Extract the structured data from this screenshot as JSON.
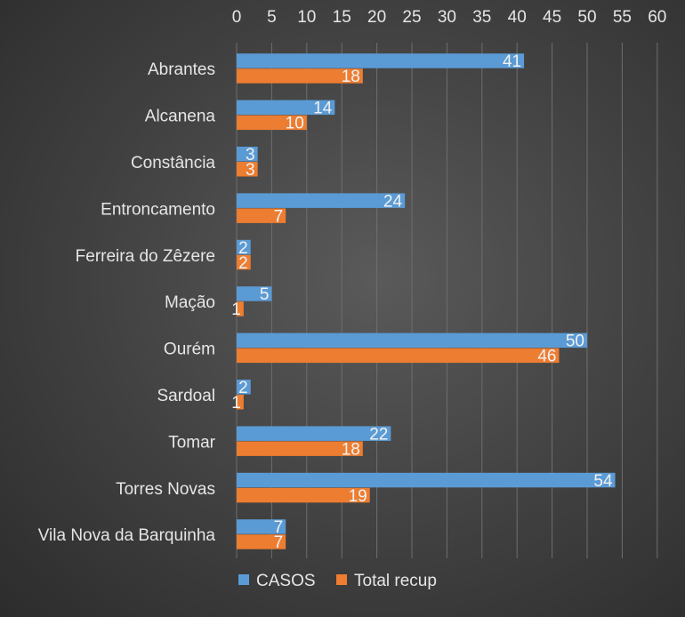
{
  "chart_data": {
    "type": "bar",
    "orientation": "horizontal",
    "categories": [
      "Abrantes",
      "Alcanena",
      "Constância",
      "Entroncamento",
      "Ferreira do Zêzere",
      "Mação",
      "Ourém",
      "Sardoal",
      "Tomar",
      "Torres Novas",
      "Vila Nova da Barquinha"
    ],
    "series": [
      {
        "name": "CASOS",
        "color": "#5b9bd5",
        "values": [
          41,
          14,
          3,
          24,
          2,
          5,
          50,
          2,
          22,
          54,
          7
        ]
      },
      {
        "name": "Total recup",
        "color": "#ed7d31",
        "values": [
          18,
          10,
          3,
          7,
          2,
          1,
          46,
          1,
          18,
          19,
          7
        ]
      }
    ],
    "xlim": [
      0,
      60
    ],
    "xticks": [
      "0",
      "5",
      "10",
      "15",
      "20",
      "25",
      "30",
      "35",
      "40",
      "45",
      "50",
      "55",
      "60"
    ],
    "x_axis_position": "top",
    "legend_position": "bottom",
    "grid": true
  }
}
